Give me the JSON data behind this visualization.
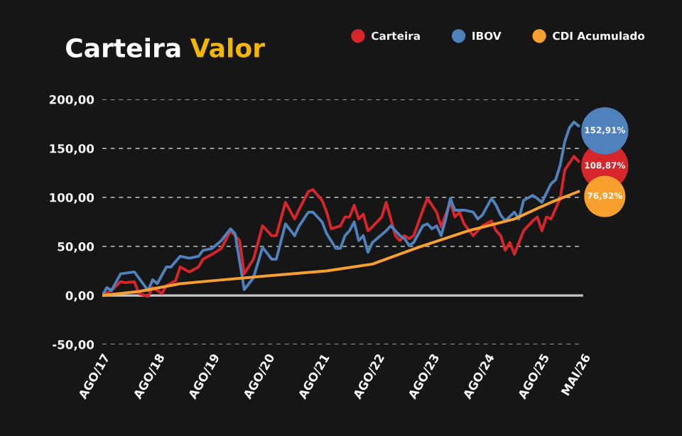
{
  "chart_data": {
    "type": "line",
    "title": "Carteira Valor",
    "legend": "top right",
    "grid": "y",
    "line_style": "solid",
    "xlim": [
      "2017-08",
      "2026-05"
    ],
    "xticks": [
      {
        "value": "2017-08",
        "label": "AGO/17"
      },
      {
        "value": "2018-08",
        "label": "AGO/18"
      },
      {
        "value": "2019-08",
        "label": "AGO/19"
      },
      {
        "value": "2020-08",
        "label": "AGO/20"
      },
      {
        "value": "2021-08",
        "label": "AGO/21"
      },
      {
        "value": "2022-08",
        "label": "AGO/22"
      },
      {
        "value": "2023-08",
        "label": "AGO/23"
      },
      {
        "value": "2024-08",
        "label": "AGO/24"
      },
      {
        "value": "2025-08",
        "label": "AGO/25"
      },
      {
        "value": "2026-05",
        "label": "MAI/26"
      }
    ],
    "ylim": [
      -50,
      200
    ],
    "yticks": [
      {
        "value": -50,
        "label": "-50,00"
      },
      {
        "value": 0,
        "label": "0,00"
      },
      {
        "value": 50,
        "label": "50,00"
      },
      {
        "value": 100,
        "label": "100,00"
      },
      {
        "value": 150,
        "label": "150,00"
      },
      {
        "value": 200,
        "label": "200,00"
      }
    ],
    "ref_lines": [
      {
        "axis": "y",
        "value": 0,
        "color": "#c8c8c8",
        "line_style": "solid"
      }
    ],
    "series": [
      {
        "name": "Carteira",
        "color": "#d7262b",
        "x": [
          "2017-08",
          "2017-10",
          "2017-12",
          "2018-01",
          "2018-03",
          "2018-04",
          "2018-06",
          "2018-07",
          "2018-09",
          "2018-10",
          "2018-12",
          "2019-01",
          "2019-03",
          "2019-05",
          "2019-06",
          "2019-08",
          "2019-10",
          "2019-12",
          "2020-02",
          "2020-03",
          "2020-05",
          "2020-07",
          "2020-08",
          "2020-09",
          "2020-10",
          "2020-12",
          "2021-02",
          "2021-03",
          "2021-05",
          "2021-06",
          "2021-08",
          "2021-09",
          "2021-10",
          "2021-12",
          "2022-01",
          "2022-02",
          "2022-03",
          "2022-04",
          "2022-05",
          "2022-06",
          "2022-07",
          "2022-08",
          "2022-09",
          "2022-10",
          "2022-12",
          "2023-01",
          "2023-02",
          "2023-03",
          "2023-04",
          "2023-06",
          "2023-07",
          "2023-09",
          "2023-10",
          "2023-12",
          "2024-01",
          "2024-02",
          "2024-03",
          "2024-05",
          "2024-06",
          "2024-07",
          "2024-09",
          "2024-10",
          "2024-11",
          "2024-12",
          "2025-01",
          "2025-02",
          "2025-04",
          "2025-06",
          "2025-07",
          "2025-08",
          "2025-09",
          "2025-10",
          "2025-12",
          "2026-01",
          "2026-03",
          "2026-04"
        ],
        "values": [
          0,
          5,
          14,
          13,
          14,
          2,
          -1,
          8,
          2,
          10,
          15,
          29,
          24,
          29,
          37,
          42,
          48,
          66,
          56,
          22,
          37,
          71,
          66,
          61,
          61,
          95,
          78,
          88,
          106,
          108,
          97,
          85,
          68,
          71,
          80,
          80,
          92,
          78,
          83,
          66,
          70,
          75,
          80,
          95,
          61,
          56,
          61,
          58,
          61,
          87,
          99,
          85,
          70,
          95,
          80,
          85,
          73,
          61,
          66,
          71,
          76,
          66,
          61,
          46,
          54,
          42,
          66,
          76,
          80,
          66,
          80,
          78,
          99,
          128,
          142,
          137
        ]
      },
      {
        "name": "IBOV",
        "color": "#4f81bd",
        "x": [
          "2017-08",
          "2017-09",
          "2017-10",
          "2017-12",
          "2018-03",
          "2018-06",
          "2018-07",
          "2018-08",
          "2018-10",
          "2018-11",
          "2019-01",
          "2019-03",
          "2019-05",
          "2019-06",
          "2019-08",
          "2019-10",
          "2019-12",
          "2020-01",
          "2020-03",
          "2020-05",
          "2020-07",
          "2020-09",
          "2020-10",
          "2020-12",
          "2021-02",
          "2021-03",
          "2021-05",
          "2021-06",
          "2021-08",
          "2021-09",
          "2021-11",
          "2021-12",
          "2022-01",
          "2022-02",
          "2022-03",
          "2022-04",
          "2022-05",
          "2022-06",
          "2022-07",
          "2022-10",
          "2022-11",
          "2022-12",
          "2023-01",
          "2023-02",
          "2023-03",
          "2023-04",
          "2023-06",
          "2023-07",
          "2023-08",
          "2023-09",
          "2023-10",
          "2023-11",
          "2023-12",
          "2024-01",
          "2024-03",
          "2024-05",
          "2024-06",
          "2024-07",
          "2024-09",
          "2024-10",
          "2024-11",
          "2024-12",
          "2025-02",
          "2025-03",
          "2025-04",
          "2025-06",
          "2025-07",
          "2025-08",
          "2025-10",
          "2025-11",
          "2025-12",
          "2026-01",
          "2026-02",
          "2026-03",
          "2026-04"
        ],
        "values": [
          0,
          8,
          5,
          22,
          24,
          5,
          16,
          12,
          29,
          29,
          40,
          38,
          40,
          46,
          48,
          56,
          68,
          63,
          6,
          18,
          49,
          37,
          37,
          73,
          61,
          71,
          85,
          85,
          75,
          63,
          48,
          48,
          61,
          66,
          75,
          56,
          61,
          44,
          54,
          66,
          71,
          66,
          61,
          58,
          51,
          54,
          71,
          73,
          68,
          71,
          61,
          78,
          99,
          87,
          87,
          85,
          78,
          82,
          99,
          92,
          82,
          76,
          85,
          78,
          97,
          102,
          99,
          95,
          114,
          118,
          133,
          157,
          171,
          177,
          173
        ]
      },
      {
        "name": "CDI Acumulado",
        "color": "#f7a030",
        "x": [
          "2017-08",
          "2018-04",
          "2019-01",
          "2019-08",
          "2020-08",
          "2021-09",
          "2022-07",
          "2023-05",
          "2024-04",
          "2025-02",
          "2025-10",
          "2026-04"
        ],
        "values": [
          0,
          4,
          12,
          15,
          20,
          25,
          32,
          49,
          66,
          78,
          95,
          106
        ]
      }
    ],
    "annotations": [
      {
        "text": "108,87%",
        "x": "2026-05",
        "y": 132
      },
      {
        "text": "152,91%",
        "x": "2026-05",
        "y": 168
      },
      {
        "text": "76,92%",
        "x": "2026-05",
        "y": 101
      }
    ]
  }
}
